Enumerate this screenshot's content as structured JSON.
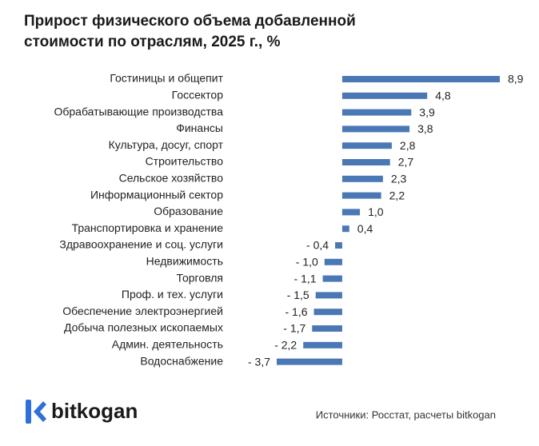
{
  "chart_data": {
    "type": "bar",
    "orientation": "horizontal",
    "title": "Прирост физического объема добавленной стоимости по отраслям, 2025 г., %",
    "categories": [
      "Гостиницы и общепит",
      "Госсектор",
      "Обрабатывающие производства",
      "Финансы",
      "Культура, досуг, спорт",
      "Строительство",
      "Сельское хозяйство",
      "Информационный сектор",
      "Образование",
      "Транспортировка и хранение",
      "Здравоохранение и соц. услуги",
      "Недвижимость",
      "Торговля",
      "Проф. и тех. услуги",
      "Обеспечение электроэнергией",
      "Добыча полезных ископаемых",
      "Админ. деятельность",
      "Водоснабжение"
    ],
    "values": [
      8.9,
      4.8,
      3.9,
      3.8,
      2.8,
      2.7,
      2.3,
      2.2,
      1.0,
      0.4,
      -0.4,
      -1.0,
      -1.1,
      -1.5,
      -1.6,
      -1.7,
      -2.2,
      -3.7
    ],
    "value_labels": [
      "8,9",
      "4,8",
      "3,9",
      "3,8",
      "2,8",
      "2,7",
      "2,3",
      "2,2",
      "1,0",
      "0,4",
      "- 0,4",
      "- 1,0",
      "- 1,1",
      "- 1,5",
      "- 1,6",
      "- 1,7",
      "- 2,2",
      "- 3,7"
    ],
    "color": "#4a78b5",
    "logo": "bitkogan",
    "source": "Источники: Росстат, расчеты bitkogan"
  }
}
